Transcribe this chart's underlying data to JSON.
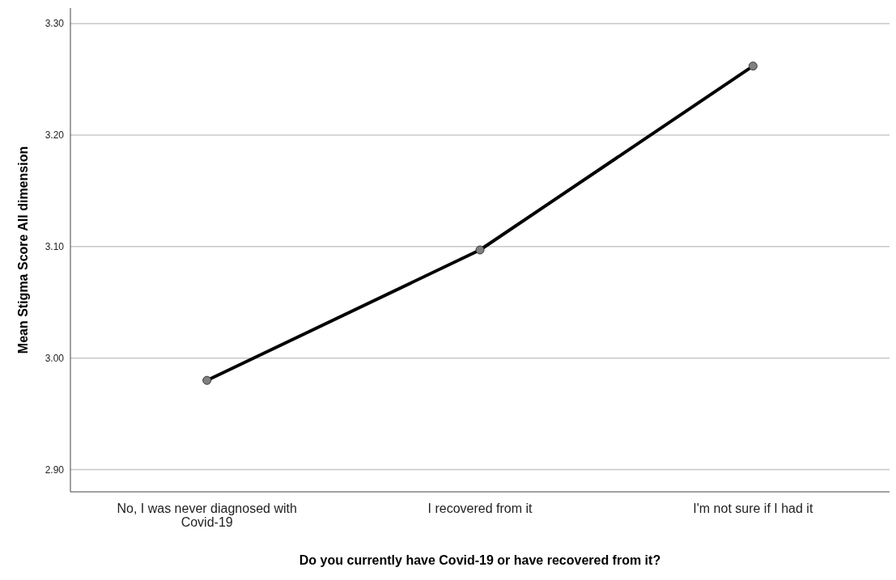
{
  "chart_data": {
    "type": "line",
    "xlabel": "Do you currently have Covid-19 or have recovered from it?",
    "ylabel": "Mean Stigma Score All dimension",
    "categories": [
      "No, I was never diagnosed with Covid-19",
      "I recovered from it",
      "I'm not sure if I had it"
    ],
    "series": [
      {
        "color": "#000000",
        "values": [
          2.98,
          3.097,
          3.262
        ]
      }
    ],
    "ylim": [
      2.88,
      3.314
    ],
    "yticks": [
      {
        "value": 2.9,
        "label": "2.90"
      },
      {
        "value": 3.0,
        "label": "3.00"
      },
      {
        "value": 3.1,
        "label": "3.10"
      },
      {
        "value": 3.2,
        "label": "3.20"
      },
      {
        "value": 3.3,
        "label": "3.30"
      }
    ],
    "grid": "y",
    "marker": "circle",
    "line_style": "solid"
  }
}
